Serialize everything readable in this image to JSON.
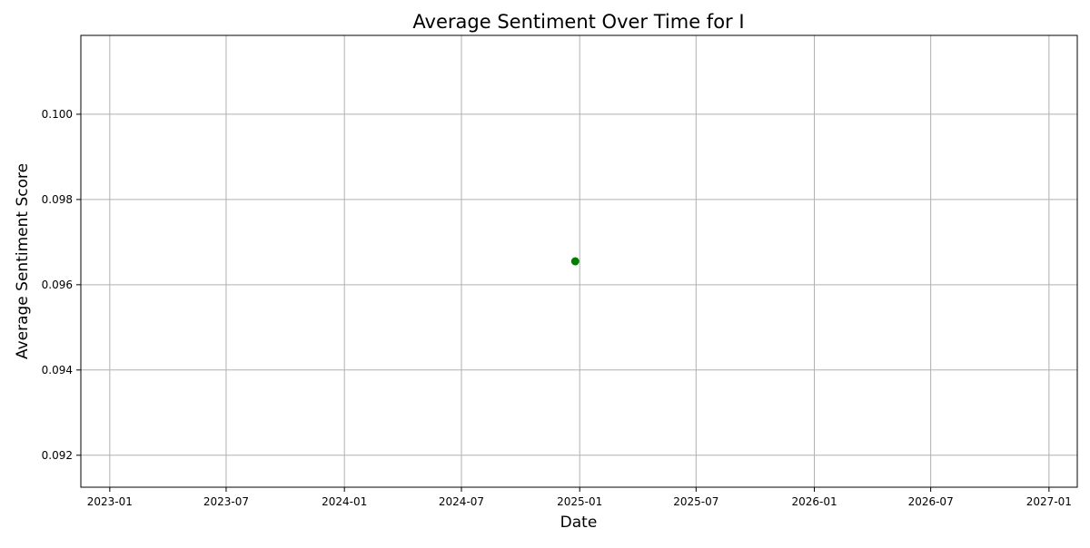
{
  "chart_data": {
    "type": "scatter",
    "title": "Average Sentiment Over Time for I",
    "xlabel": "Date",
    "ylabel": "Average Sentiment Score",
    "x_type": "date",
    "xlim": [
      "2022-11-17",
      "2027-02-14"
    ],
    "ylim": [
      0.09125,
      0.10185
    ],
    "x_ticks": [
      "2023-01",
      "2023-07",
      "2024-01",
      "2024-07",
      "2025-01",
      "2025-07",
      "2026-01",
      "2026-07",
      "2027-01"
    ],
    "y_ticks": [
      0.092,
      0.094,
      0.096,
      0.098,
      0.1
    ],
    "y_tick_labels": [
      "0.092",
      "0.094",
      "0.096",
      "0.098",
      "0.100"
    ],
    "grid": true,
    "series": [
      {
        "color": "#008000",
        "points": [
          {
            "x": "2024-12-25",
            "y": 0.09655
          }
        ]
      }
    ]
  }
}
